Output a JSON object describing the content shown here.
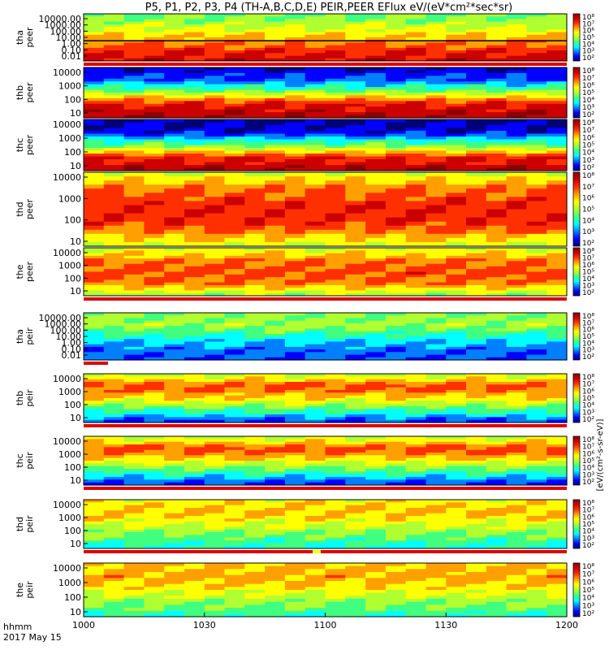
{
  "title": "P5, P1, P2, P3, P4 (TH-A,B,C,D,E) PEIR,PEER EFlux eV/(eV*cm²*sec*sr)",
  "time_label": "hhmm",
  "date_label": "2017 May 15",
  "colorbar_unit_label": "[eV/(cm²-s-sr-eV)]",
  "colors": {
    "background": "#ffffff",
    "flag_red": "#dd0000",
    "flag_yellow": "#ffff00",
    "spectro_scale": [
      "#00007a",
      "#0000ff",
      "#0080ff",
      "#00ffff",
      "#40ff80",
      "#b0ff30",
      "#ffff00",
      "#ffa000",
      "#ff3000",
      "#cc0000",
      "#8b0000"
    ]
  },
  "chart_data": {
    "type": "heatmap",
    "x_tick_labels": [
      "1000",
      "1030",
      "1100",
      "1130",
      "1200"
    ],
    "x_tick_minutes": [
      0,
      30,
      60,
      90,
      120
    ],
    "xlim_minutes": [
      0,
      120
    ],
    "colorbar_tick_labels": [
      "10²",
      "10³",
      "10⁴",
      "10⁵",
      "10⁶",
      "10⁷",
      "10⁸"
    ],
    "colorbar_range_log10": [
      2,
      8
    ],
    "panels": [
      {
        "label_top": "tha",
        "label_bottom": "peer",
        "y_tick_labels": [
          "10000.00",
          "1000.00",
          "100.00",
          "10.00",
          "1.00",
          "0.10",
          "0.01"
        ],
        "ylim_log10": [
          -2,
          4.3
        ],
        "flag_bar": "red",
        "profile": [
          7.4,
          6.8,
          6.0,
          5.2,
          4.6
        ],
        "cutoff_log10": 0.7
      },
      {
        "label_top": "thb",
        "label_bottom": "peer",
        "y_tick_labels": [
          "10000",
          "1000",
          "100",
          "10"
        ],
        "ylim_log10": [
          1,
          4.3
        ],
        "flag_bar": "none",
        "profile": [
          7.6,
          7.2,
          5.0,
          3.0,
          2.4
        ]
      },
      {
        "label_top": "thc",
        "label_bottom": "peer",
        "y_tick_labels": [
          "10000",
          "1000",
          "100",
          "10"
        ],
        "ylim_log10": [
          1,
          4.3
        ],
        "flag_bar": "none",
        "profile": [
          7.6,
          7.0,
          4.6,
          2.6,
          2.2
        ]
      },
      {
        "label_top": "thd",
        "label_bottom": "peer",
        "y_tick_labels": [
          "10000",
          "1000",
          "100",
          "10"
        ],
        "ylim_log10": [
          1,
          4.3
        ],
        "flag_bar": "none",
        "profile": [
          5.4,
          6.8,
          7.0,
          6.6,
          5.4
        ]
      },
      {
        "label_top": "the",
        "label_bottom": "peer",
        "y_tick_labels": [
          "10000",
          "1000",
          "100",
          "10"
        ],
        "ylim_log10": [
          0.8,
          4.3
        ],
        "flag_bar": "red",
        "profile": [
          5.0,
          6.4,
          6.8,
          6.4,
          5.4
        ]
      },
      {
        "label_top": "tha",
        "label_bottom": "peir",
        "y_tick_labels": [
          "10000.00",
          "1000.00",
          "100.00",
          "10.00",
          "1.00",
          "0.10",
          "0.01"
        ],
        "ylim_log10": [
          -2,
          4.3
        ],
        "flag_bar": "red_partial",
        "profile": [
          3.0,
          3.2,
          4.0,
          5.0,
          4.8
        ]
      },
      {
        "label_top": "thb",
        "label_bottom": "peir",
        "y_tick_labels": [
          "10000",
          "1000",
          "100",
          "10"
        ],
        "ylim_log10": [
          0.7,
          4.3
        ],
        "flag_bar": "red",
        "profile": [
          2.8,
          4.4,
          5.8,
          6.8,
          5.2
        ]
      },
      {
        "label_top": "thc",
        "label_bottom": "peir",
        "y_tick_labels": [
          "10000",
          "1000",
          "100",
          "10"
        ],
        "ylim_log10": [
          0.7,
          4.3
        ],
        "flag_bar": "red",
        "profile": [
          2.8,
          4.2,
          5.6,
          6.8,
          5.2
        ]
      },
      {
        "label_top": "thd",
        "label_bottom": "peir",
        "y_tick_labels": [
          "10000",
          "1000",
          "100",
          "10"
        ],
        "ylim_log10": [
          0.7,
          4.3
        ],
        "flag_bar": "red_yellow",
        "profile": [
          4.0,
          4.6,
          5.4,
          6.0,
          5.6
        ]
      },
      {
        "label_top": "the",
        "label_bottom": "peir",
        "y_tick_labels": [
          "10000",
          "1000",
          "100",
          "10"
        ],
        "ylim_log10": [
          0.7,
          4.3
        ],
        "flag_bar": "none",
        "profile": [
          4.2,
          4.8,
          5.6,
          6.2,
          6.0
        ]
      }
    ]
  }
}
